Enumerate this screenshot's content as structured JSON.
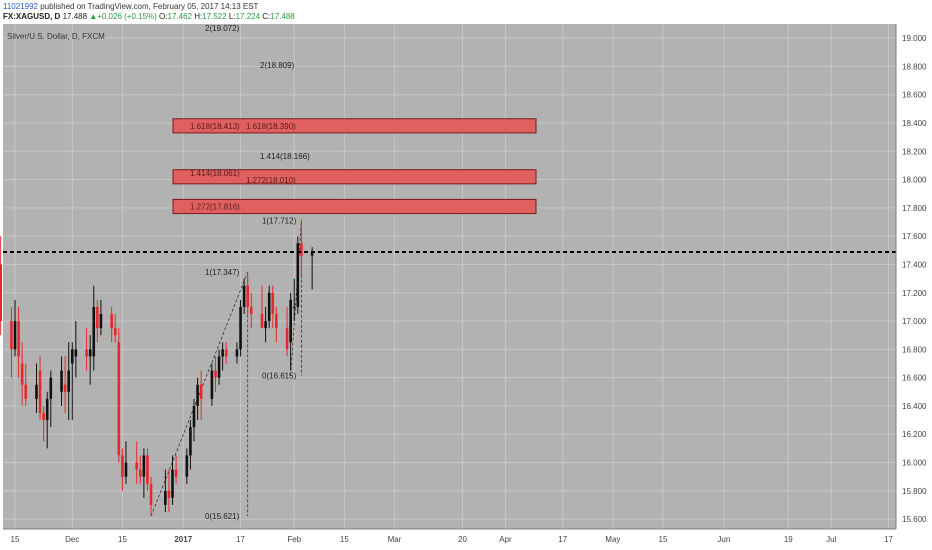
{
  "header": {
    "user": "11021992",
    "published": "published on TradingView.com, February 05, 2017 14:13 EST",
    "symbol": "FX:XAGUSD, D",
    "last": "17.488",
    "up_arrow": "▲",
    "change": "+0.026 (+0.15%)",
    "o_label": "O:",
    "o_val": "17.462",
    "h_label": "H:",
    "h_val": "17.522",
    "l_label": "L:",
    "l_val": "17.224",
    "c_label": "C:",
    "c_val": "17.488"
  },
  "pane_title": "Silver/U.S. Dollar, D, FXCM",
  "colors": {
    "background": "#b2b2b2",
    "grid": "#c6c6c6",
    "bull": "#111111",
    "bear": "#e8272c",
    "zone_fill": "#e06060",
    "zone_border": "#7a1a1a",
    "price_line": "#000000"
  },
  "chart_data": {
    "type": "candlestick",
    "interval": "D",
    "ylim": [
      15.53,
      19.1
    ],
    "y_ticks": [
      "15.600",
      "15.800",
      "16.000",
      "16.200",
      "16.400",
      "16.600",
      "16.800",
      "17.000",
      "17.200",
      "17.400",
      "17.600",
      "17.800",
      "18.000",
      "18.200",
      "18.400",
      "18.600",
      "18.800",
      "19.000"
    ],
    "x_ticks": [
      {
        "label": "15",
        "date": "2016-11-15"
      },
      {
        "label": "Dec",
        "date": "2016-12-01"
      },
      {
        "label": "15",
        "date": "2016-12-15"
      },
      {
        "label": "2017",
        "date": "2017-01-01",
        "bold": true
      },
      {
        "label": "17",
        "date": "2017-01-17"
      },
      {
        "label": "Feb",
        "date": "2017-02-01"
      },
      {
        "label": "15",
        "date": "2017-02-15"
      },
      {
        "label": "Mar",
        "date": "2017-03-01"
      },
      {
        "label": "20",
        "date": "2017-03-20"
      },
      {
        "label": "Apr",
        "date": "2017-04-01"
      },
      {
        "label": "17",
        "date": "2017-04-17"
      },
      {
        "label": "May",
        "date": "2017-05-01"
      },
      {
        "label": "15",
        "date": "2017-05-15"
      },
      {
        "label": "Jun",
        "date": "2017-06-01"
      },
      {
        "label": "19",
        "date": "2017-06-19"
      },
      {
        "label": "Jul",
        "date": "2017-07-01"
      },
      {
        "label": "17",
        "date": "2017-07-17"
      }
    ],
    "current_price": "17.488",
    "candles": [
      {
        "d": "2016-11-10",
        "o": 18.55,
        "h": 18.95,
        "l": 17.3,
        "c": 17.4
      },
      {
        "d": "2016-11-11",
        "o": 17.4,
        "h": 17.6,
        "l": 16.9,
        "c": 17.0
      },
      {
        "d": "2016-11-14",
        "o": 17.0,
        "h": 17.1,
        "l": 16.6,
        "c": 16.8
      },
      {
        "d": "2016-11-15",
        "o": 16.8,
        "h": 17.15,
        "l": 16.75,
        "c": 17.0
      },
      {
        "d": "2016-11-16",
        "o": 17.0,
        "h": 17.1,
        "l": 16.6,
        "c": 16.75
      },
      {
        "d": "2016-11-17",
        "o": 16.7,
        "h": 16.85,
        "l": 16.4,
        "c": 16.55
      },
      {
        "d": "2016-11-18",
        "o": 16.55,
        "h": 16.7,
        "l": 16.4,
        "c": 16.45
      },
      {
        "d": "2016-11-21",
        "o": 16.45,
        "h": 16.7,
        "l": 16.35,
        "c": 16.55
      },
      {
        "d": "2016-11-22",
        "o": 16.65,
        "h": 16.75,
        "l": 16.3,
        "c": 16.35
      },
      {
        "d": "2016-11-23",
        "o": 16.35,
        "h": 16.4,
        "l": 16.15,
        "c": 16.3
      },
      {
        "d": "2016-11-24",
        "o": 16.3,
        "h": 16.5,
        "l": 16.1,
        "c": 16.45
      },
      {
        "d": "2016-11-25",
        "o": 16.45,
        "h": 16.65,
        "l": 16.25,
        "c": 16.6
      },
      {
        "d": "2016-11-28",
        "o": 16.5,
        "h": 16.75,
        "l": 16.4,
        "c": 16.65
      },
      {
        "d": "2016-11-29",
        "o": 16.55,
        "h": 16.75,
        "l": 16.35,
        "c": 16.5
      },
      {
        "d": "2016-11-30",
        "o": 16.5,
        "h": 16.85,
        "l": 16.3,
        "c": 16.65
      },
      {
        "d": "2016-12-01",
        "o": 16.7,
        "h": 16.85,
        "l": 16.3,
        "c": 16.8
      },
      {
        "d": "2016-12-02",
        "o": 16.75,
        "h": 17.0,
        "l": 16.6,
        "c": 16.8
      },
      {
        "d": "2016-12-05",
        "o": 16.8,
        "h": 16.95,
        "l": 16.65,
        "c": 16.75
      },
      {
        "d": "2016-12-06",
        "o": 16.75,
        "h": 16.9,
        "l": 16.55,
        "c": 16.8
      },
      {
        "d": "2016-12-07",
        "o": 16.75,
        "h": 17.25,
        "l": 16.65,
        "c": 17.1
      },
      {
        "d": "2016-12-08",
        "o": 17.1,
        "h": 17.15,
        "l": 16.85,
        "c": 16.95
      },
      {
        "d": "2016-12-09",
        "o": 16.95,
        "h": 17.15,
        "l": 16.9,
        "c": 17.05
      },
      {
        "d": "2016-12-12",
        "o": 17.05,
        "h": 17.1,
        "l": 16.85,
        "c": 16.95
      },
      {
        "d": "2016-12-13",
        "o": 16.95,
        "h": 17.05,
        "l": 16.85,
        "c": 16.9
      },
      {
        "d": "2016-12-14",
        "o": 16.85,
        "h": 16.95,
        "l": 16.0,
        "c": 16.05
      },
      {
        "d": "2016-12-15",
        "o": 16.05,
        "h": 16.1,
        "l": 15.8,
        "c": 15.9
      },
      {
        "d": "2016-12-16",
        "o": 15.9,
        "h": 16.15,
        "l": 15.85,
        "c": 16.0
      },
      {
        "d": "2016-12-19",
        "o": 16.0,
        "h": 16.15,
        "l": 15.85,
        "c": 15.95
      },
      {
        "d": "2016-12-20",
        "o": 15.95,
        "h": 16.05,
        "l": 15.85,
        "c": 15.9
      },
      {
        "d": "2016-12-21",
        "o": 15.9,
        "h": 16.1,
        "l": 15.75,
        "c": 16.05
      },
      {
        "d": "2016-12-22",
        "o": 16.05,
        "h": 16.1,
        "l": 15.8,
        "c": 15.85
      },
      {
        "d": "2016-12-23",
        "o": 15.85,
        "h": 15.9,
        "l": 15.62,
        "c": 15.7
      },
      {
        "d": "2016-12-27",
        "o": 15.7,
        "h": 15.95,
        "l": 15.65,
        "c": 15.8
      },
      {
        "d": "2016-12-28",
        "o": 15.8,
        "h": 15.95,
        "l": 15.65,
        "c": 15.75
      },
      {
        "d": "2016-12-29",
        "o": 15.75,
        "h": 16.05,
        "l": 15.7,
        "c": 15.95
      },
      {
        "d": "2016-12-30",
        "o": 15.95,
        "h": 16.05,
        "l": 15.85,
        "c": 15.9
      },
      {
        "d": "2017-01-02",
        "o": 15.9,
        "h": 16.1,
        "l": 15.85,
        "c": 16.05
      },
      {
        "d": "2017-01-03",
        "o": 16.05,
        "h": 16.3,
        "l": 15.95,
        "c": 16.25
      },
      {
        "d": "2017-01-04",
        "o": 16.25,
        "h": 16.45,
        "l": 16.15,
        "c": 16.4
      },
      {
        "d": "2017-01-05",
        "o": 16.4,
        "h": 16.6,
        "l": 16.3,
        "c": 16.55
      },
      {
        "d": "2017-01-06",
        "o": 16.55,
        "h": 16.65,
        "l": 16.3,
        "c": 16.45
      },
      {
        "d": "2017-01-09",
        "o": 16.45,
        "h": 16.7,
        "l": 16.4,
        "c": 16.65
      },
      {
        "d": "2017-01-10",
        "o": 16.65,
        "h": 16.75,
        "l": 16.5,
        "c": 16.6
      },
      {
        "d": "2017-01-11",
        "o": 16.6,
        "h": 16.8,
        "l": 16.55,
        "c": 16.75
      },
      {
        "d": "2017-01-12",
        "o": 16.75,
        "h": 16.85,
        "l": 16.65,
        "c": 16.8
      },
      {
        "d": "2017-01-13",
        "o": 16.8,
        "h": 16.85,
        "l": 16.7,
        "c": 16.75
      },
      {
        "d": "2017-01-16",
        "o": 16.75,
        "h": 16.85,
        "l": 16.7,
        "c": 16.8
      },
      {
        "d": "2017-01-17",
        "o": 16.8,
        "h": 17.15,
        "l": 16.75,
        "c": 17.1
      },
      {
        "d": "2017-01-18",
        "o": 17.1,
        "h": 17.3,
        "l": 17.05,
        "c": 17.25
      },
      {
        "d": "2017-01-19",
        "o": 17.25,
        "h": 17.32,
        "l": 17.05,
        "c": 17.1
      },
      {
        "d": "2017-01-20",
        "o": 17.1,
        "h": 17.2,
        "l": 16.95,
        "c": 17.05
      },
      {
        "d": "2017-01-23",
        "o": 17.05,
        "h": 17.25,
        "l": 16.95,
        "c": 16.95
      },
      {
        "d": "2017-01-24",
        "o": 16.95,
        "h": 17.1,
        "l": 16.85,
        "c": 17.0
      },
      {
        "d": "2017-01-25",
        "o": 17.0,
        "h": 17.25,
        "l": 16.95,
        "c": 17.2
      },
      {
        "d": "2017-01-26",
        "o": 17.2,
        "h": 17.25,
        "l": 16.95,
        "c": 17.05
      },
      {
        "d": "2017-01-27",
        "o": 17.05,
        "h": 17.1,
        "l": 16.85,
        "c": 16.95
      },
      {
        "d": "2017-01-30",
        "o": 16.95,
        "h": 17.1,
        "l": 16.75,
        "c": 16.8
      },
      {
        "d": "2017-01-31",
        "o": 16.85,
        "h": 17.2,
        "l": 16.65,
        "c": 17.15
      },
      {
        "d": "2017-02-01",
        "o": 17.1,
        "h": 17.3,
        "l": 17.0,
        "c": 17.1
      },
      {
        "d": "2017-02-02",
        "o": 17.1,
        "h": 17.6,
        "l": 17.05,
        "c": 17.55
      },
      {
        "d": "2017-02-03",
        "o": 17.55,
        "h": 17.72,
        "l": 17.3,
        "c": 17.462
      },
      {
        "d": "2017-02-06",
        "o": 17.462,
        "h": 17.522,
        "l": 17.224,
        "c": 17.488
      }
    ],
    "zones": [
      {
        "top": 18.43,
        "bottom": 18.33,
        "labels": [
          "1.618(18.413)",
          "1.618(18.390)"
        ]
      },
      {
        "top": 18.07,
        "bottom": 17.97,
        "labels": [
          "1.414(18.061)",
          "1.272(18.010)"
        ]
      },
      {
        "top": 17.86,
        "bottom": 17.76,
        "labels": [
          "1.272(17.816)"
        ]
      }
    ],
    "fib_labels": [
      "2(19.072)",
      "2(18.809)",
      "1.414(18.166)",
      "1(17.712)",
      "1(17.347)",
      "0(16.615)",
      "0(15.621)"
    ]
  }
}
